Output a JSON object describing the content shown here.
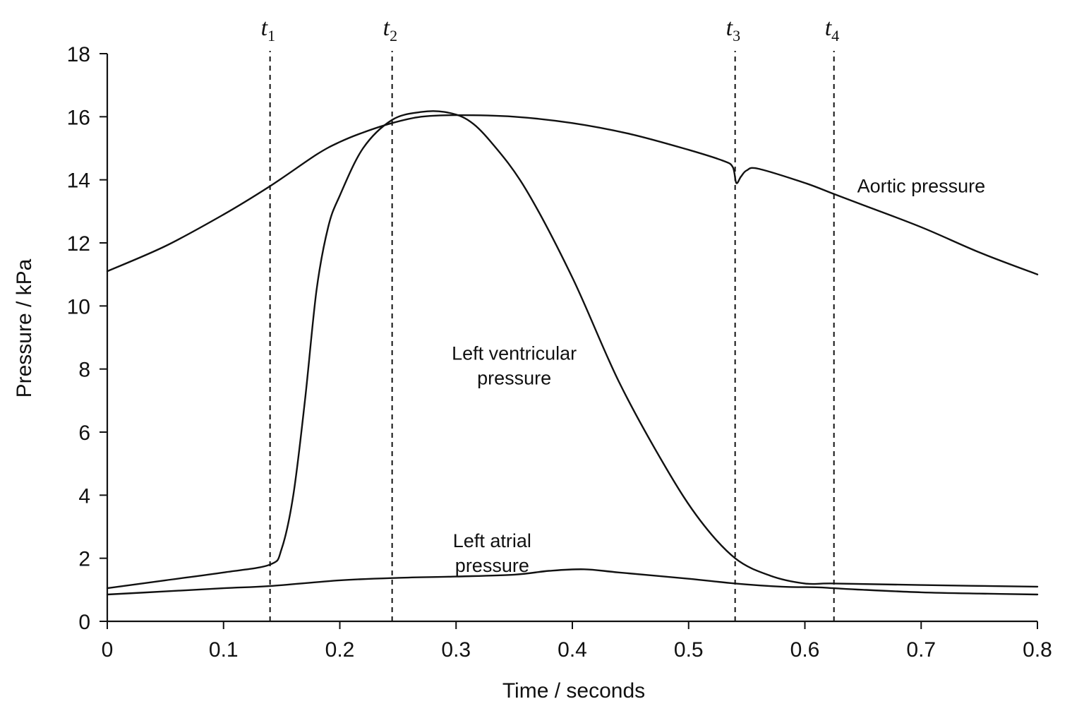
{
  "chart_data": {
    "type": "line",
    "xlabel": "Time / seconds",
    "ylabel": "Pressure / kPa",
    "xlim": [
      0,
      0.8
    ],
    "ylim": [
      0,
      18
    ],
    "x_ticks": [
      "0",
      "0.1",
      "0.2",
      "0.3",
      "0.4",
      "0.5",
      "0.6",
      "0.7",
      "0.8"
    ],
    "y_ticks": [
      "0",
      "2",
      "4",
      "6",
      "8",
      "10",
      "12",
      "14",
      "16",
      "18"
    ],
    "grid": false,
    "legend": "none",
    "markers": [
      {
        "name": "t",
        "sub": "1",
        "x": 0.14
      },
      {
        "name": "t",
        "sub": "2",
        "x": 0.245
      },
      {
        "name": "t",
        "sub": "3",
        "x": 0.54
      },
      {
        "name": "t",
        "sub": "4",
        "x": 0.625
      }
    ],
    "series": [
      {
        "name": "Aortic pressure",
        "x": [
          0,
          0.05,
          0.1,
          0.14,
          0.18,
          0.2,
          0.22,
          0.245,
          0.27,
          0.3,
          0.35,
          0.4,
          0.45,
          0.5,
          0.53,
          0.538,
          0.541,
          0.545,
          0.55,
          0.56,
          0.6,
          0.625,
          0.65,
          0.7,
          0.75,
          0.8
        ],
        "y": [
          11.1,
          11.9,
          12.9,
          13.8,
          14.8,
          15.2,
          15.5,
          15.8,
          16.0,
          16.05,
          16.0,
          15.8,
          15.45,
          14.95,
          14.6,
          14.4,
          13.9,
          14.1,
          14.3,
          14.35,
          13.9,
          13.55,
          13.2,
          12.5,
          11.7,
          11.0
        ]
      },
      {
        "name": "Left ventricular pressure",
        "x": [
          0,
          0.05,
          0.1,
          0.14,
          0.15,
          0.16,
          0.17,
          0.18,
          0.19,
          0.2,
          0.22,
          0.245,
          0.27,
          0.29,
          0.31,
          0.33,
          0.36,
          0.4,
          0.44,
          0.48,
          0.51,
          0.54,
          0.57,
          0.6,
          0.625,
          0.7,
          0.8
        ],
        "y": [
          1.05,
          1.3,
          1.55,
          1.8,
          2.3,
          4.0,
          7.0,
          10.5,
          12.5,
          13.5,
          15.0,
          15.9,
          16.15,
          16.15,
          15.9,
          15.2,
          13.7,
          10.9,
          7.6,
          4.9,
          3.2,
          2.0,
          1.45,
          1.2,
          1.2,
          1.15,
          1.1
        ]
      },
      {
        "name": "Left atrial pressure",
        "x": [
          0,
          0.05,
          0.1,
          0.14,
          0.2,
          0.25,
          0.3,
          0.35,
          0.38,
          0.41,
          0.44,
          0.5,
          0.54,
          0.58,
          0.61,
          0.625,
          0.65,
          0.7,
          0.75,
          0.8
        ],
        "y": [
          0.85,
          0.95,
          1.05,
          1.12,
          1.3,
          1.38,
          1.42,
          1.48,
          1.6,
          1.65,
          1.55,
          1.35,
          1.2,
          1.1,
          1.08,
          1.05,
          1.0,
          0.92,
          0.88,
          0.85
        ]
      }
    ],
    "annotations": [
      {
        "key": "aortic",
        "lines": [
          "Aortic pressure"
        ],
        "x": 0.645,
        "y": 13.6
      },
      {
        "key": "ventricular",
        "lines": [
          "Left ventricular",
          "pressure"
        ],
        "x": 0.35,
        "y": 8.3
      },
      {
        "key": "atrial",
        "lines": [
          "Left atrial",
          "pressure"
        ],
        "x": 0.331,
        "y": 2.35
      }
    ]
  }
}
